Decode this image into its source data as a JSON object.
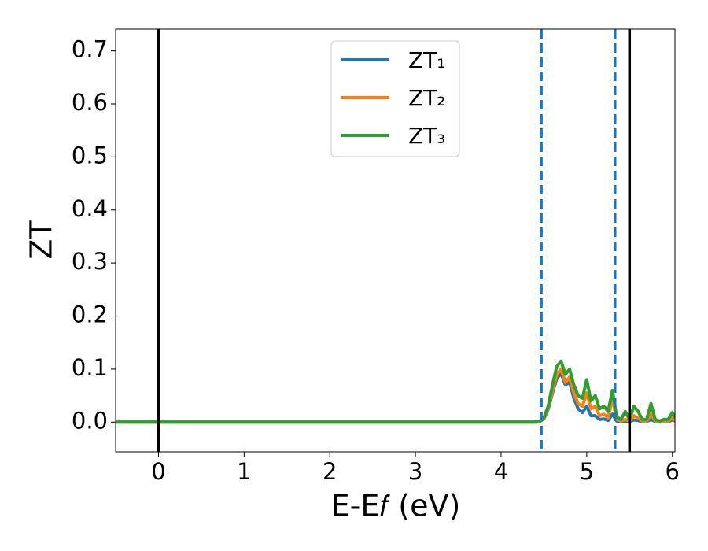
{
  "chart_data": {
    "type": "line",
    "xlabel": "E-E𝑓 (eV)",
    "ylabel": "ZT",
    "x": [
      -0.5,
      4.4,
      4.45,
      4.5,
      4.55,
      4.6,
      4.65,
      4.7,
      4.75,
      4.8,
      4.85,
      4.9,
      4.95,
      5.0,
      5.05,
      5.1,
      5.15,
      5.2,
      5.25,
      5.3,
      5.35,
      5.4,
      5.45,
      5.5,
      5.55,
      5.6,
      5.65,
      5.7,
      5.75,
      5.8,
      5.85,
      5.9,
      5.95,
      6.0,
      6.03
    ],
    "series": [
      {
        "name": "ZT₁",
        "color": "#1f77b4",
        "values": [
          0,
          0,
          0.001,
          0.006,
          0.024,
          0.055,
          0.082,
          0.092,
          0.07,
          0.075,
          0.045,
          0.025,
          0.018,
          0.03,
          0.012,
          0.012,
          0.005,
          0.006,
          0.003,
          0.015,
          0.002,
          0.001,
          0.002,
          0.001,
          0.004,
          0.003,
          0.001,
          0.001,
          0.005,
          0.001,
          0,
          0.001,
          0.001,
          0.004,
          0.002
        ]
      },
      {
        "name": "ZT₂",
        "color": "#ff7f0e",
        "values": [
          0,
          0,
          0.001,
          0.007,
          0.026,
          0.06,
          0.09,
          0.1,
          0.075,
          0.085,
          0.055,
          0.035,
          0.03,
          0.055,
          0.025,
          0.03,
          0.012,
          0.015,
          0.008,
          0.045,
          0.005,
          0.002,
          0.005,
          0.002,
          0.012,
          0.008,
          0.002,
          0.002,
          0.015,
          0.002,
          0.001,
          0.002,
          0.002,
          0.008,
          0.003
        ]
      },
      {
        "name": "ZT₃",
        "color": "#2ca02c",
        "values": [
          0,
          0,
          0.001,
          0.008,
          0.03,
          0.07,
          0.105,
          0.115,
          0.09,
          0.1,
          0.07,
          0.05,
          0.045,
          0.08,
          0.04,
          0.05,
          0.025,
          0.03,
          0.02,
          0.06,
          0.01,
          0.005,
          0.02,
          0.005,
          0.03,
          0.02,
          0.005,
          0.005,
          0.035,
          0.005,
          0.002,
          0.005,
          0.005,
          0.018,
          0.008
        ]
      }
    ],
    "vlines": [
      {
        "x": 0,
        "color": "#000000",
        "style": "solid"
      },
      {
        "x": 4.47,
        "color": "#1f77b4",
        "style": "dashed"
      },
      {
        "x": 5.33,
        "color": "#1f77b4",
        "style": "dashed"
      },
      {
        "x": 5.5,
        "color": "#000000",
        "style": "solid"
      }
    ],
    "xlim": [
      -0.5,
      6.03
    ],
    "ylim": [
      -0.056,
      0.741
    ],
    "xticks": [
      0,
      1,
      2,
      3,
      4,
      5,
      6
    ],
    "yticks": [
      {
        "value": 0,
        "label": "0.0"
      },
      0.1,
      0.2,
      0.3,
      0.4,
      0.5,
      0.6,
      0.7
    ],
    "grid": false,
    "legend": "upper center"
  }
}
